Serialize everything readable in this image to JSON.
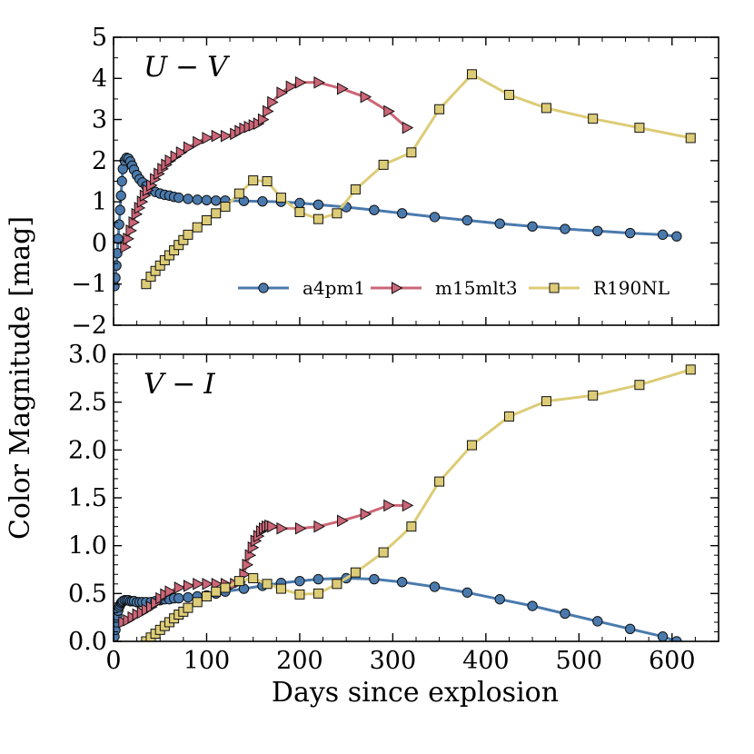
{
  "chart_data": {
    "type": "line",
    "xlabel": "Days since explosion",
    "ylabel": "Color Magnitude [mag]",
    "xlim": [
      0,
      650
    ],
    "x_ticks": [
      0,
      100,
      200,
      300,
      400,
      500,
      600
    ],
    "x_tick_labels": [
      "0",
      "100",
      "200",
      "300",
      "400",
      "500",
      "600"
    ],
    "series_styles": [
      {
        "name": "a4pm1",
        "color": "#4a7aad",
        "marker": "circle"
      },
      {
        "name": "m15mlt3",
        "color": "#cc6677",
        "marker": "triangle-right"
      },
      {
        "name": "R190NL",
        "color": "#ddcc77",
        "marker": "square"
      }
    ],
    "legend": {
      "entries": [
        "a4pm1",
        "m15mlt3",
        "R190NL"
      ],
      "location": "lower-right of top panel",
      "columns": 3
    },
    "panels": [
      {
        "title_main": "U",
        "title_minus": "−",
        "title_second": "V",
        "ylim": [
          -2,
          5
        ],
        "y_ticks": [
          -2,
          -1,
          0,
          1,
          2,
          3,
          4,
          5
        ],
        "y_tick_labels": [
          "−2",
          "−1",
          "0",
          "1",
          "2",
          "3",
          "4",
          "5"
        ],
        "series": [
          {
            "name": "a4pm1",
            "x": [
              1,
              2,
              3,
              4,
              5,
              6,
              7,
              8,
              9,
              10,
              12,
              14,
              16,
              18,
              20,
              22,
              25,
              28,
              31,
              35,
              40,
              45,
              50,
              55,
              60,
              65,
              70,
              80,
              90,
              100,
              110,
              120,
              140,
              160,
              180,
              200,
              220,
              250,
              280,
              310,
              345,
              380,
              415,
              450,
              485,
              520,
              555,
              590,
              605
            ],
            "y": [
              -1.05,
              -0.85,
              -0.55,
              -0.25,
              0.1,
              0.45,
              0.8,
              1.15,
              1.5,
              1.8,
              2.0,
              2.07,
              2.05,
              1.98,
              1.88,
              1.78,
              1.65,
              1.55,
              1.47,
              1.38,
              1.3,
              1.24,
              1.2,
              1.17,
              1.15,
              1.12,
              1.1,
              1.07,
              1.05,
              1.04,
              1.03,
              1.03,
              1.02,
              1.01,
              1.0,
              0.97,
              0.93,
              0.87,
              0.8,
              0.72,
              0.63,
              0.55,
              0.47,
              0.4,
              0.34,
              0.29,
              0.24,
              0.2,
              0.16
            ]
          },
          {
            "name": "m15mlt3",
            "x": [
              12,
              15,
              18,
              21,
              24,
              27,
              30,
              33,
              36,
              40,
              44,
              48,
              52,
              56,
              60,
              66,
              72,
              80,
              90,
              100,
              110,
              120,
              130,
              135,
              140,
              145,
              150,
              155,
              160,
              165,
              170,
              180,
              190,
              200,
              220,
              245,
              270,
              295,
              315
            ],
            "y": [
              -0.1,
              0.1,
              0.3,
              0.5,
              0.7,
              0.85,
              1.0,
              1.15,
              1.28,
              1.4,
              1.55,
              1.68,
              1.8,
              1.9,
              2.0,
              2.1,
              2.2,
              2.32,
              2.45,
              2.55,
              2.6,
              2.6,
              2.65,
              2.72,
              2.78,
              2.82,
              2.86,
              2.9,
              3.0,
              3.2,
              3.42,
              3.65,
              3.8,
              3.9,
              3.9,
              3.75,
              3.55,
              3.2,
              2.8
            ]
          },
          {
            "name": "R190NL",
            "x": [
              35,
              40,
              45,
              50,
              55,
              60,
              65,
              70,
              75,
              80,
              90,
              100,
              110,
              120,
              135,
              150,
              165,
              180,
              200,
              220,
              240,
              260,
              290,
              320,
              350,
              385,
              425,
              465,
              515,
              565,
              620
            ],
            "y": [
              -1.0,
              -0.82,
              -0.68,
              -0.55,
              -0.42,
              -0.3,
              -0.18,
              -0.05,
              0.07,
              0.2,
              0.38,
              0.55,
              0.72,
              0.88,
              1.2,
              1.52,
              1.5,
              1.1,
              0.75,
              0.58,
              0.72,
              1.3,
              1.9,
              2.2,
              3.25,
              4.1,
              3.6,
              3.28,
              3.02,
              2.8,
              2.55
            ]
          }
        ]
      },
      {
        "title_main": "V",
        "title_minus": "−",
        "title_second": "I",
        "ylim": [
          0,
          3.0
        ],
        "y_ticks": [
          0,
          0.5,
          1.0,
          1.5,
          2.0,
          2.5,
          3.0
        ],
        "y_tick_labels": [
          "0.0",
          "0.5",
          "1.0",
          "1.5",
          "2.0",
          "2.5",
          "3.0"
        ],
        "series": [
          {
            "name": "a4pm1",
            "x": [
              1,
              2,
              3,
              4,
              5,
              6,
              7,
              8,
              9,
              10,
              12,
              14,
              16,
              18,
              20,
              22,
              25,
              28,
              31,
              35,
              40,
              45,
              50,
              55,
              60,
              65,
              70,
              80,
              90,
              100,
              110,
              120,
              140,
              160,
              180,
              200,
              220,
              250,
              280,
              310,
              345,
              380,
              415,
              450,
              485,
              520,
              555,
              590,
              605
            ],
            "y": [
              0.05,
              0.12,
              0.2,
              0.27,
              0.32,
              0.36,
              0.38,
              0.4,
              0.41,
              0.42,
              0.43,
              0.43,
              0.43,
              0.42,
              0.42,
              0.42,
              0.41,
              0.41,
              0.41,
              0.41,
              0.41,
              0.42,
              0.43,
              0.44,
              0.44,
              0.45,
              0.45,
              0.46,
              0.47,
              0.48,
              0.5,
              0.52,
              0.55,
              0.58,
              0.61,
              0.63,
              0.65,
              0.66,
              0.65,
              0.62,
              0.57,
              0.51,
              0.44,
              0.37,
              0.29,
              0.21,
              0.13,
              0.05,
              0.0
            ]
          },
          {
            "name": "m15mlt3",
            "x": [
              10,
              15,
              20,
              25,
              30,
              35,
              40,
              45,
              50,
              55,
              60,
              70,
              80,
              90,
              100,
              110,
              120,
              130,
              135,
              140,
              143,
              146,
              149,
              152,
              155,
              158,
              161,
              164,
              167,
              170,
              180,
              200,
              220,
              245,
              270,
              295,
              315
            ],
            "y": [
              0.2,
              0.22,
              0.25,
              0.28,
              0.3,
              0.33,
              0.36,
              0.4,
              0.45,
              0.49,
              0.52,
              0.56,
              0.58,
              0.6,
              0.6,
              0.6,
              0.6,
              0.6,
              0.62,
              0.7,
              0.8,
              0.9,
              0.98,
              1.05,
              1.1,
              1.15,
              1.18,
              1.2,
              1.21,
              1.2,
              1.18,
              1.18,
              1.2,
              1.26,
              1.33,
              1.42,
              1.42
            ]
          },
          {
            "name": "R190NL",
            "x": [
              35,
              40,
              45,
              50,
              55,
              60,
              65,
              70,
              75,
              80,
              90,
              100,
              110,
              120,
              135,
              150,
              165,
              180,
              200,
              220,
              240,
              260,
              290,
              320,
              350,
              385,
              425,
              465,
              515,
              565,
              620
            ],
            "y": [
              0.0,
              0.04,
              0.08,
              0.12,
              0.16,
              0.2,
              0.24,
              0.28,
              0.31,
              0.35,
              0.41,
              0.47,
              0.52,
              0.56,
              0.63,
              0.66,
              0.6,
              0.55,
              0.49,
              0.5,
              0.6,
              0.72,
              0.93,
              1.2,
              1.67,
              2.05,
              2.35,
              2.51,
              2.57,
              2.68,
              2.84
            ]
          }
        ]
      }
    ]
  }
}
